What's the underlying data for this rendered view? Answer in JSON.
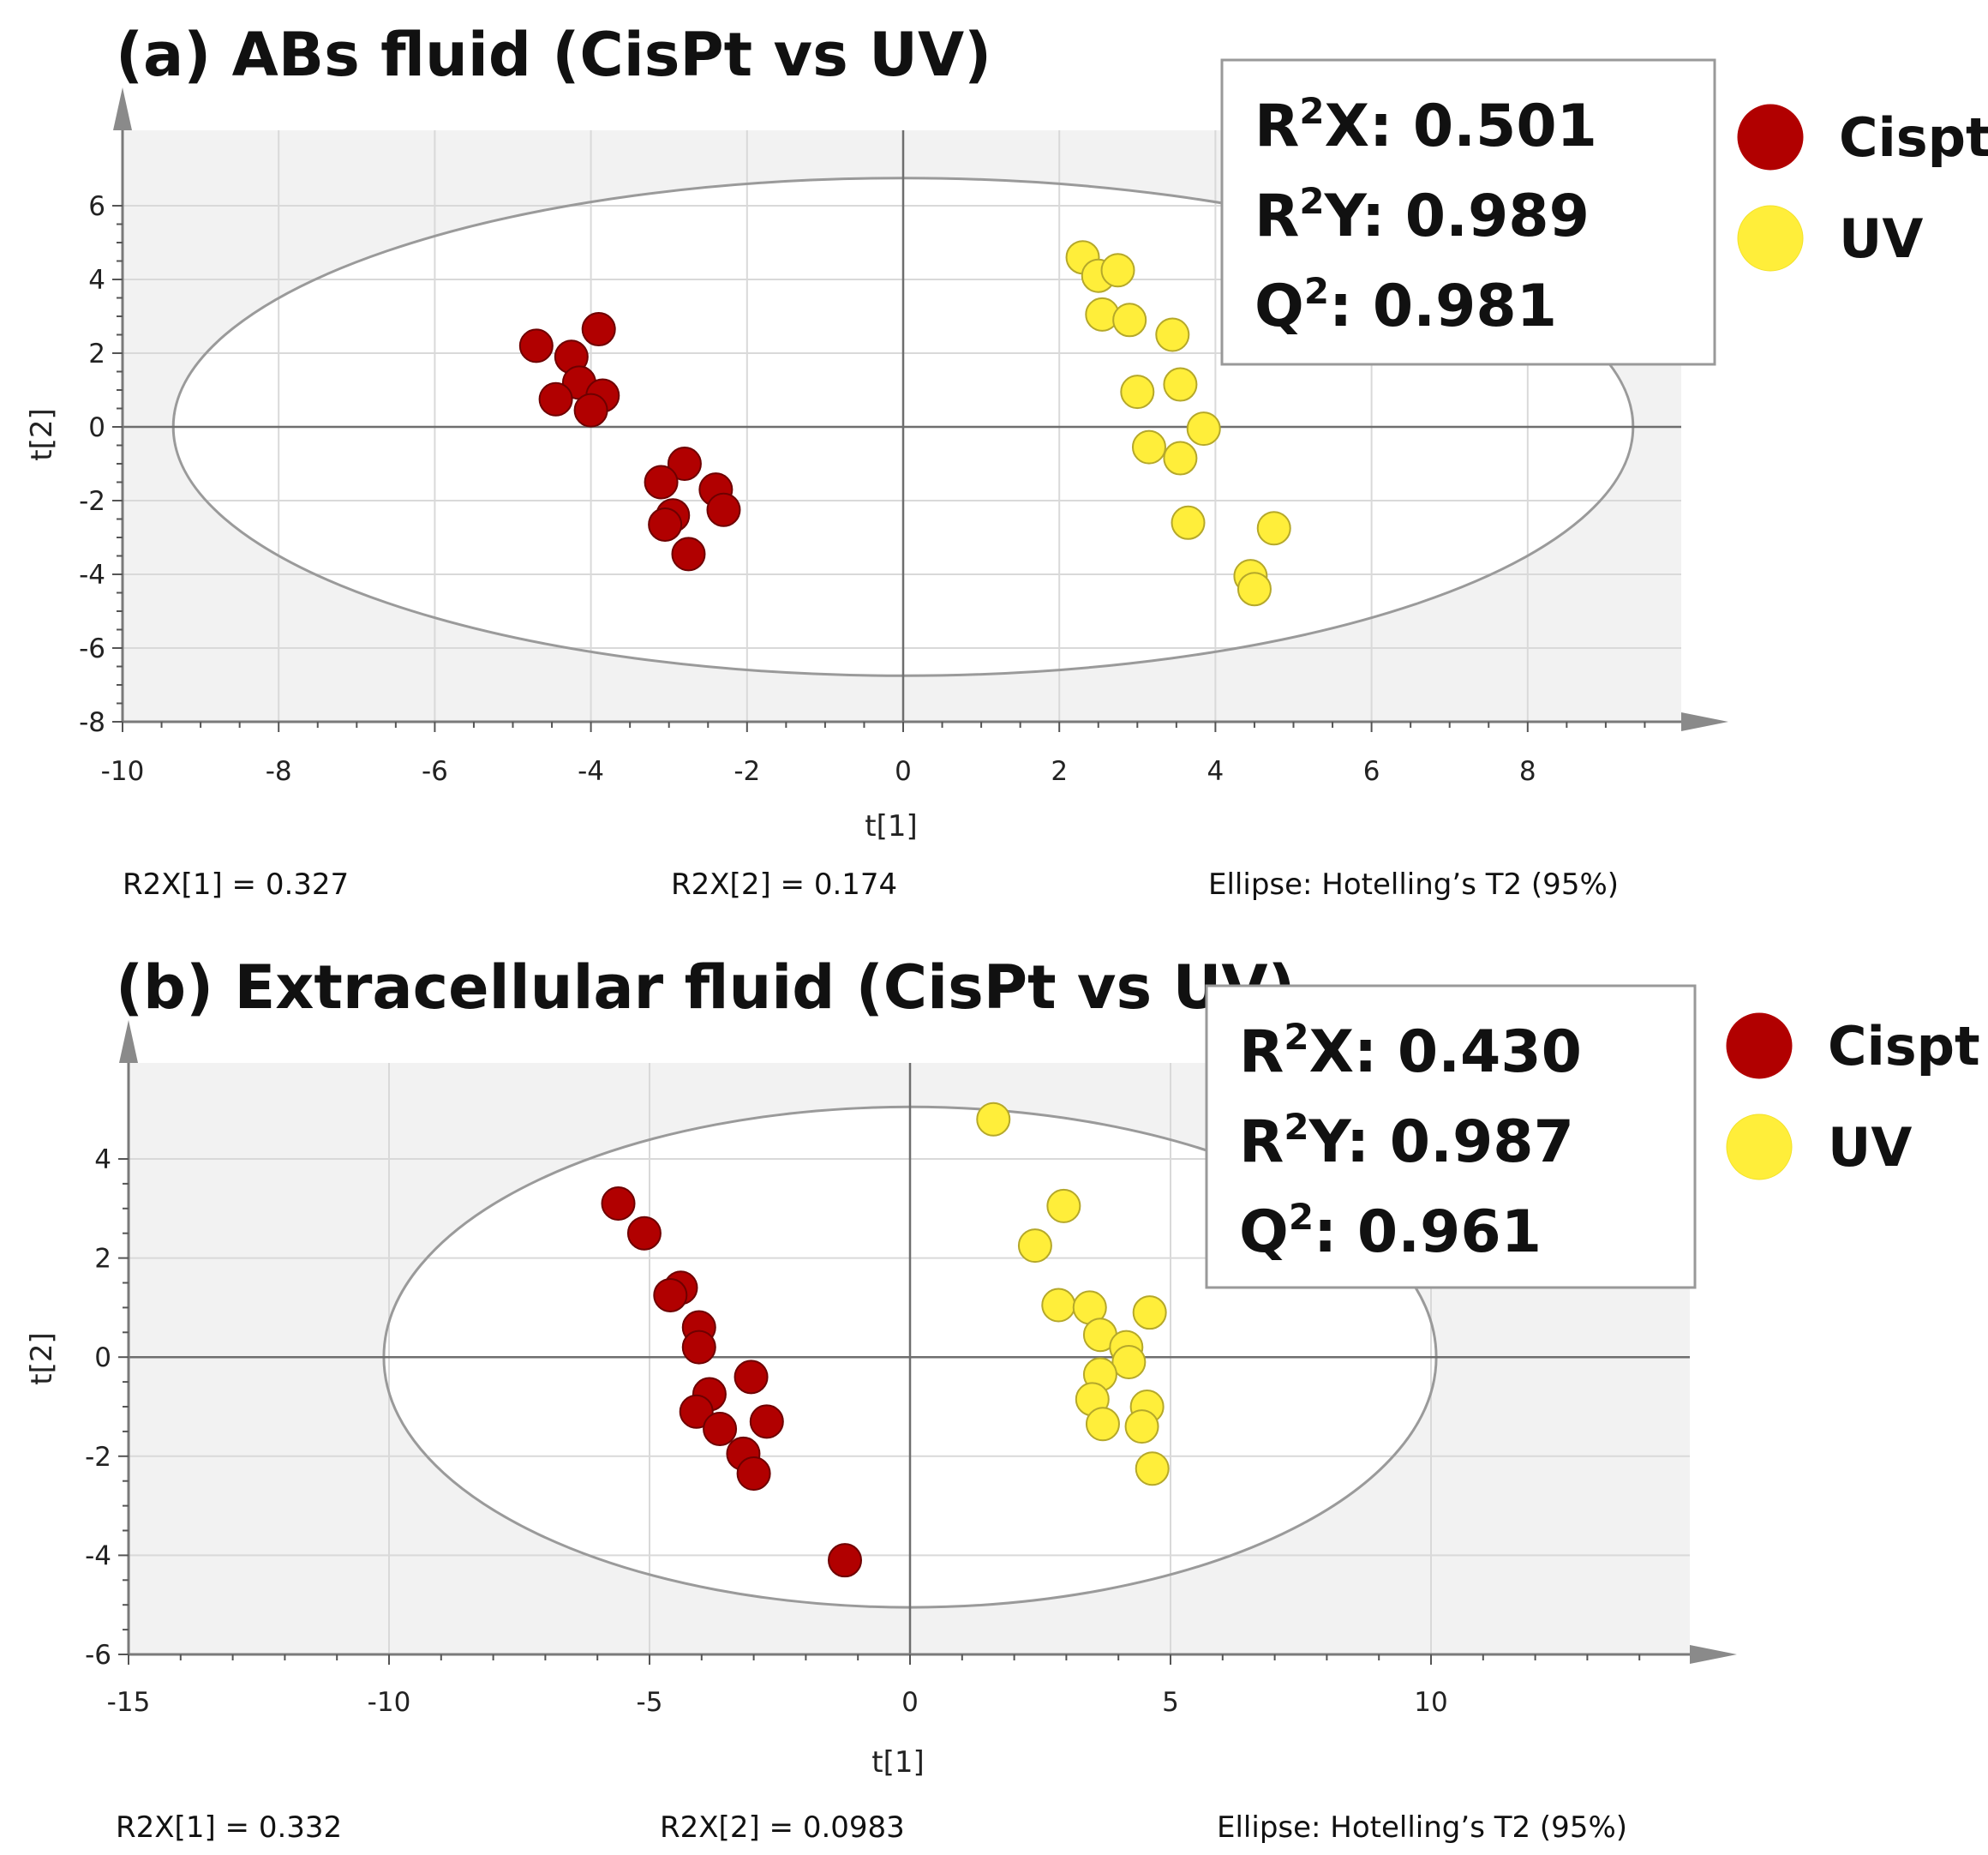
{
  "chart_data": [
    {
      "type": "scatter",
      "title": "(a) ABs fluid (CisPt vs UV)",
      "xlabel": "t[1]",
      "ylabel": "t[2]",
      "xlim": [
        -10,
        10
      ],
      "ylim": [
        -8,
        7.8
      ],
      "x_ticks": [
        "-10",
        "-8",
        "-6",
        "-4",
        "-2",
        "0",
        "2",
        "4",
        "6",
        "8"
      ],
      "y_ticks": [
        "6",
        "4",
        "2",
        "0",
        "-2",
        "-4",
        "-6",
        "-8"
      ],
      "ellipse": {
        "rx": 9.35,
        "ry": 6.75
      },
      "grid": true,
      "legend_position": "right",
      "footer": {
        "left": "R2X[1] = 0.327",
        "middle": "R2X[2] = 0.174",
        "right": "Ellipse: Hotelling’s T2 (95%)"
      },
      "stats": [
        {
          "pre": "R",
          "sup": "2",
          "post": "X: 0.501"
        },
        {
          "pre": "R",
          "sup": "2",
          "post": "Y: 0.989"
        },
        {
          "pre": "Q",
          "sup": "2",
          "post": ": 0.981"
        }
      ],
      "series": [
        {
          "name": "Cispt",
          "color": "#b10000",
          "points": [
            [
              -4.7,
              2.2
            ],
            [
              -4.25,
              1.9
            ],
            [
              -3.9,
              2.65
            ],
            [
              -4.15,
              1.2
            ],
            [
              -3.85,
              0.85
            ],
            [
              -4.45,
              0.75
            ],
            [
              -4.0,
              0.45
            ],
            [
              -2.8,
              -1.0
            ],
            [
              -3.1,
              -1.5
            ],
            [
              -2.4,
              -1.7
            ],
            [
              -2.3,
              -2.25
            ],
            [
              -2.95,
              -2.4
            ],
            [
              -3.05,
              -2.65
            ],
            [
              -2.75,
              -3.45
            ]
          ]
        },
        {
          "name": "UV",
          "color": "#ffee3a",
          "points": [
            [
              2.3,
              4.6
            ],
            [
              2.5,
              4.1
            ],
            [
              2.75,
              4.25
            ],
            [
              2.55,
              3.05
            ],
            [
              2.9,
              2.9
            ],
            [
              3.45,
              2.5
            ],
            [
              3.55,
              1.15
            ],
            [
              3.0,
              0.95
            ],
            [
              3.85,
              -0.05
            ],
            [
              3.15,
              -0.55
            ],
            [
              3.55,
              -0.85
            ],
            [
              3.65,
              -2.6
            ],
            [
              4.75,
              -2.75
            ],
            [
              4.45,
              -4.05
            ],
            [
              4.5,
              -4.4
            ]
          ]
        }
      ]
    },
    {
      "type": "scatter",
      "title": "(b) Extracellular fluid (CisPt vs UV)",
      "xlabel": "t[1]",
      "ylabel": "t[2]",
      "xlim": [
        -15,
        15
      ],
      "ylim": [
        -6,
        5.5
      ],
      "x_ticks": [
        "-15",
        "-10",
        "-5",
        "0",
        "5",
        "10"
      ],
      "y_ticks": [
        "4",
        "2",
        "0",
        "-2",
        "-4",
        "-6"
      ],
      "ellipse": {
        "rx": 10.1,
        "ry": 5.05
      },
      "grid": true,
      "legend_position": "right",
      "footer": {
        "left": "R2X[1] = 0.332",
        "middle": "R2X[2] = 0.0983",
        "right": "Ellipse: Hotelling’s T2 (95%)"
      },
      "stats": [
        {
          "pre": "R",
          "sup": "2",
          "post": "X: 0.430"
        },
        {
          "pre": "R",
          "sup": "2",
          "post": "Y: 0.987"
        },
        {
          "pre": "Q",
          "sup": "2",
          "post": ": 0.961"
        }
      ],
      "series": [
        {
          "name": "Cispt",
          "color": "#b10000",
          "points": [
            [
              -5.6,
              3.1
            ],
            [
              -5.1,
              2.5
            ],
            [
              -4.4,
              1.4
            ],
            [
              -4.6,
              1.25
            ],
            [
              -4.05,
              0.6
            ],
            [
              -4.05,
              0.2
            ],
            [
              -3.05,
              -0.4
            ],
            [
              -3.85,
              -0.75
            ],
            [
              -2.75,
              -1.3
            ],
            [
              -4.1,
              -1.1
            ],
            [
              -3.65,
              -1.45
            ],
            [
              -3.2,
              -1.95
            ],
            [
              -3.0,
              -2.35
            ],
            [
              -1.25,
              -4.1
            ]
          ]
        },
        {
          "name": "UV",
          "color": "#ffee3a",
          "points": [
            [
              1.6,
              4.8
            ],
            [
              2.95,
              3.05
            ],
            [
              2.4,
              2.25
            ],
            [
              2.85,
              1.05
            ],
            [
              3.45,
              1.0
            ],
            [
              4.6,
              0.9
            ],
            [
              3.65,
              0.45
            ],
            [
              4.15,
              0.2
            ],
            [
              4.2,
              -0.1
            ],
            [
              3.65,
              -0.35
            ],
            [
              3.5,
              -0.85
            ],
            [
              4.55,
              -1.0
            ],
            [
              3.7,
              -1.35
            ],
            [
              4.45,
              -1.4
            ],
            [
              4.65,
              -2.25
            ]
          ]
        }
      ]
    }
  ]
}
